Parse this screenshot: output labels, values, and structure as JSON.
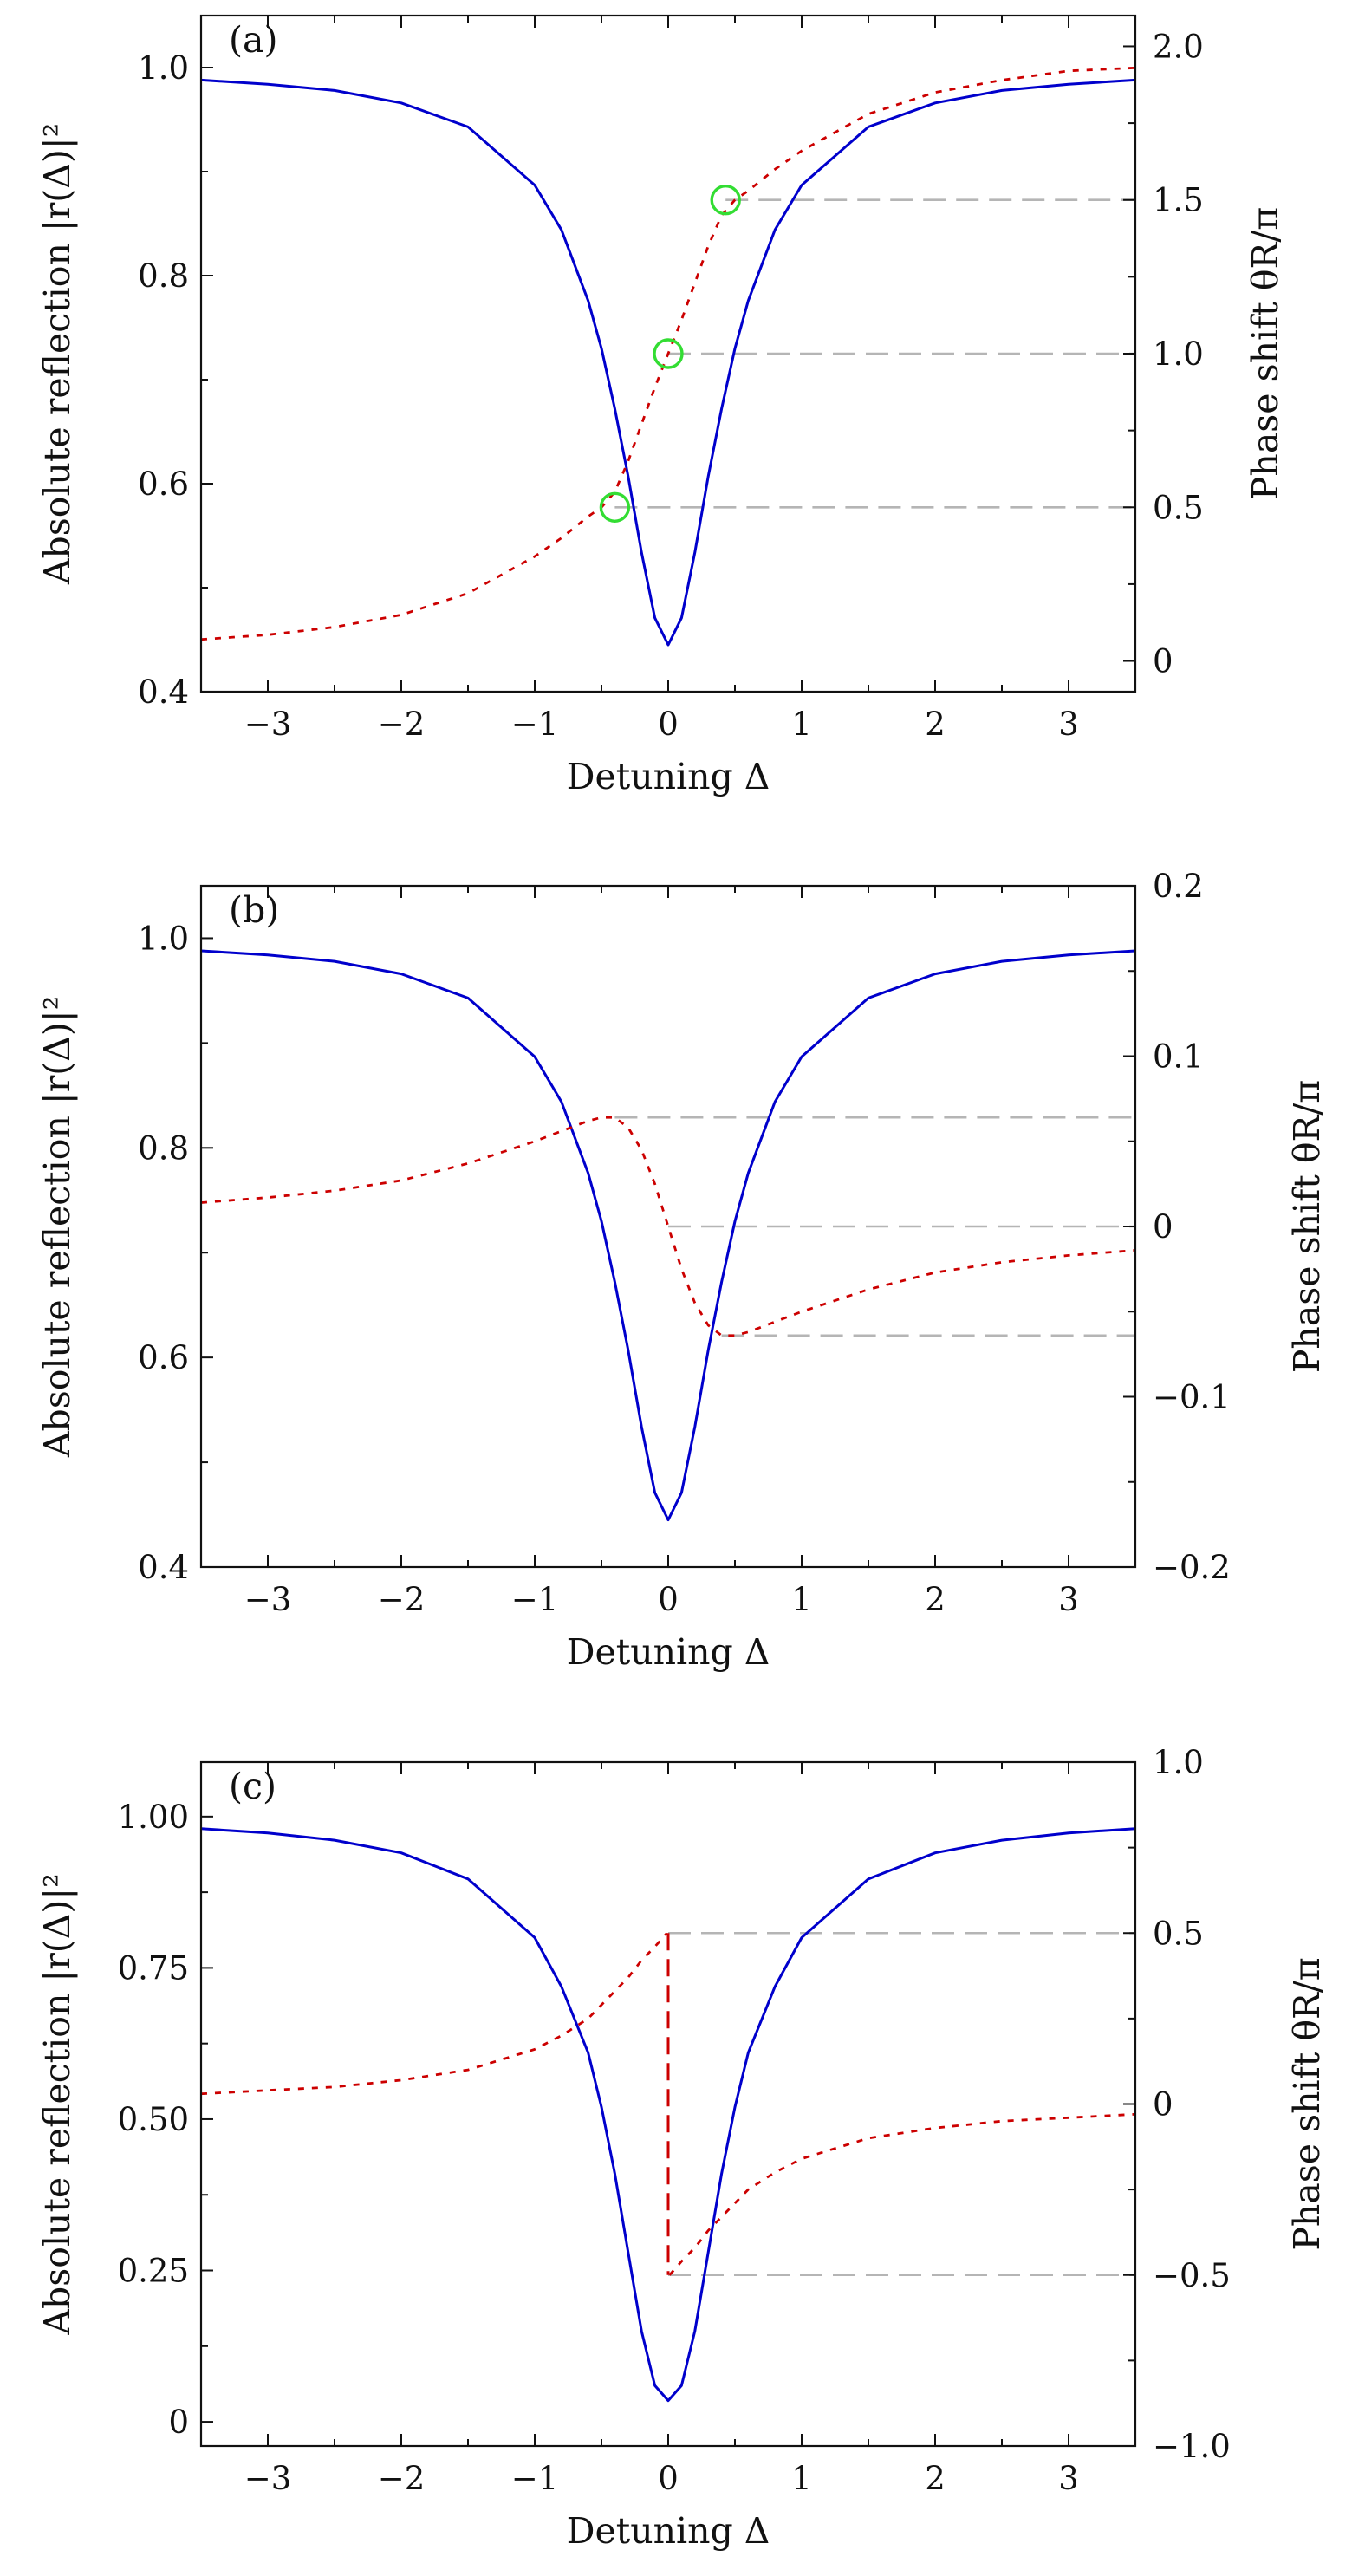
{
  "chart_data": [
    {
      "type": "line",
      "panel_label": "(a)",
      "xlabel": "Detuning Δ",
      "ylabel": "Absolute reflection |r(Δ)|²",
      "y2label": "Phase shift θR/π",
      "xlim": [
        -3.5,
        3.5
      ],
      "ylim": [
        0.4,
        1.05
      ],
      "y2lim": [
        -0.1,
        2.1
      ],
      "xticks": [
        -3,
        -2,
        -1,
        0,
        1,
        2,
        3
      ],
      "xtick_labels": [
        "−3",
        "−2",
        "−1",
        "0",
        "1",
        "2",
        "3"
      ],
      "yticks": [
        0.4,
        0.6,
        0.8,
        1.0
      ],
      "ytick_labels": [
        "0.4",
        "0.6",
        "0.8",
        "1.0"
      ],
      "y2ticks": [
        0,
        0.5,
        1.0,
        1.5,
        2.0
      ],
      "y2tick_labels": [
        "0",
        "0.5",
        "1.0",
        "1.5",
        "2.0"
      ],
      "series": [
        {
          "axis": "left",
          "style": "solid",
          "color": "#0000cc",
          "x": [
            -3.5,
            -3,
            -2.5,
            -2,
            -1.5,
            -1,
            -0.8,
            -0.6,
            -0.5,
            -0.4,
            -0.3,
            -0.2,
            -0.1,
            0,
            0.1,
            0.2,
            0.3,
            0.4,
            0.5,
            0.6,
            0.8,
            1,
            1.5,
            2,
            2.5,
            3,
            3.5
          ],
          "y": [
            0.988,
            0.984,
            0.978,
            0.966,
            0.943,
            0.887,
            0.844,
            0.776,
            0.73,
            0.672,
            0.607,
            0.534,
            0.471,
            0.445,
            0.471,
            0.534,
            0.607,
            0.672,
            0.73,
            0.776,
            0.844,
            0.887,
            0.943,
            0.966,
            0.978,
            0.984,
            0.988
          ]
        },
        {
          "axis": "right",
          "style": "dotted",
          "color": "#cc0000",
          "x": [
            -3.5,
            -3,
            -2.5,
            -2,
            -1.5,
            -1,
            -0.8,
            -0.6,
            -0.5,
            -0.4,
            -0.3,
            -0.2,
            -0.1,
            0,
            0.1,
            0.2,
            0.3,
            0.4,
            0.5,
            0.6,
            0.8,
            1,
            1.5,
            2,
            2.5,
            3,
            3.5
          ],
          "y": [
            0.07,
            0.085,
            0.11,
            0.15,
            0.22,
            0.34,
            0.4,
            0.47,
            0.5,
            0.55,
            0.65,
            0.77,
            0.89,
            1.0,
            1.11,
            1.23,
            1.35,
            1.45,
            1.5,
            1.53,
            1.6,
            1.66,
            1.78,
            1.85,
            1.89,
            1.92,
            1.93
          ]
        }
      ],
      "markers": [
        {
          "x": -0.4,
          "y2": 0.5,
          "color": "#33dd33"
        },
        {
          "x": 0.0,
          "y2": 1.0,
          "color": "#33dd33"
        },
        {
          "x": 0.43,
          "y2": 1.5,
          "color": "#33dd33"
        }
      ],
      "reference_lines": [
        {
          "from_x": -0.4,
          "y2": 0.5
        },
        {
          "from_x": 0.0,
          "y2": 1.0
        },
        {
          "from_x": 0.43,
          "y2": 1.5
        }
      ]
    },
    {
      "type": "line",
      "panel_label": "(b)",
      "xlabel": "Detuning Δ",
      "ylabel": "Absolute reflection |r(Δ)|²",
      "y2label": "Phase shift θR/π",
      "xlim": [
        -3.5,
        3.5
      ],
      "ylim": [
        0.4,
        1.05
      ],
      "y2lim": [
        -0.2,
        0.2
      ],
      "xticks": [
        -3,
        -2,
        -1,
        0,
        1,
        2,
        3
      ],
      "xtick_labels": [
        "−3",
        "−2",
        "−1",
        "0",
        "1",
        "2",
        "3"
      ],
      "yticks": [
        0.4,
        0.6,
        0.8,
        1.0
      ],
      "ytick_labels": [
        "0.4",
        "0.6",
        "0.8",
        "1.0"
      ],
      "y2ticks": [
        -0.2,
        -0.1,
        0,
        0.1,
        0.2
      ],
      "y2tick_labels": [
        "−0.2",
        "−0.1",
        "0",
        "0.1",
        "0.2"
      ],
      "series": [
        {
          "axis": "left",
          "style": "solid",
          "color": "#0000cc",
          "x": [
            -3.5,
            -3,
            -2.5,
            -2,
            -1.5,
            -1,
            -0.8,
            -0.6,
            -0.5,
            -0.4,
            -0.3,
            -0.2,
            -0.1,
            0,
            0.1,
            0.2,
            0.3,
            0.4,
            0.5,
            0.6,
            0.8,
            1,
            1.5,
            2,
            2.5,
            3,
            3.5
          ],
          "y": [
            0.988,
            0.984,
            0.978,
            0.966,
            0.943,
            0.887,
            0.844,
            0.776,
            0.73,
            0.672,
            0.607,
            0.534,
            0.471,
            0.445,
            0.471,
            0.534,
            0.607,
            0.672,
            0.73,
            0.776,
            0.844,
            0.887,
            0.943,
            0.966,
            0.978,
            0.984,
            0.988
          ]
        },
        {
          "axis": "right",
          "style": "dotted",
          "color": "#cc0000",
          "x": [
            -3.5,
            -3,
            -2.5,
            -2,
            -1.5,
            -1,
            -0.8,
            -0.6,
            -0.5,
            -0.4,
            -0.3,
            -0.2,
            -0.1,
            0,
            0.1,
            0.2,
            0.3,
            0.4,
            0.5,
            0.6,
            0.8,
            1,
            1.5,
            2,
            2.5,
            3,
            3.5
          ],
          "y": [
            0.014,
            0.017,
            0.021,
            0.027,
            0.037,
            0.05,
            0.056,
            0.062,
            0.064,
            0.064,
            0.058,
            0.045,
            0.025,
            0,
            -0.025,
            -0.045,
            -0.058,
            -0.064,
            -0.064,
            -0.062,
            -0.056,
            -0.05,
            -0.037,
            -0.027,
            -0.021,
            -0.017,
            -0.014
          ]
        }
      ],
      "markers": [],
      "reference_lines": [
        {
          "from_x": -0.4,
          "y2": 0.064
        },
        {
          "from_x": 0.0,
          "y2": 0.0
        },
        {
          "from_x": 0.4,
          "y2": -0.064
        }
      ]
    },
    {
      "type": "line",
      "panel_label": "(c)",
      "xlabel": "Detuning Δ",
      "ylabel": "Absolute reflection |r(Δ)|²",
      "y2label": "Phase shift θR/π",
      "xlim": [
        -3.5,
        3.5
      ],
      "ylim": [
        -0.04,
        1.09
      ],
      "y2lim": [
        -1.0,
        1.0
      ],
      "xticks": [
        -3,
        -2,
        -1,
        0,
        1,
        2,
        3
      ],
      "xtick_labels": [
        "−3",
        "−2",
        "−1",
        "0",
        "1",
        "2",
        "3"
      ],
      "yticks": [
        0,
        0.25,
        0.5,
        0.75,
        1.0
      ],
      "ytick_labels": [
        "0",
        "0.25",
        "0.50",
        "0.75",
        "1.00"
      ],
      "y2ticks": [
        -1.0,
        -0.5,
        0,
        0.5,
        1.0
      ],
      "y2tick_labels": [
        "−1.0",
        "−0.5",
        "0",
        "0.5",
        "1.0"
      ],
      "series": [
        {
          "axis": "left",
          "style": "solid",
          "color": "#0000cc",
          "x": [
            -3.5,
            -3,
            -2.5,
            -2,
            -1.5,
            -1,
            -0.8,
            -0.6,
            -0.5,
            -0.4,
            -0.3,
            -0.2,
            -0.1,
            0,
            0.1,
            0.2,
            0.3,
            0.4,
            0.5,
            0.6,
            0.8,
            1,
            1.5,
            2,
            2.5,
            3,
            3.5
          ],
          "y": [
            0.98,
            0.973,
            0.961,
            0.94,
            0.897,
            0.8,
            0.719,
            0.61,
            0.52,
            0.41,
            0.28,
            0.15,
            0.06,
            0.035,
            0.06,
            0.15,
            0.28,
            0.41,
            0.52,
            0.61,
            0.719,
            0.8,
            0.897,
            0.94,
            0.961,
            0.973,
            0.98
          ]
        },
        {
          "axis": "right",
          "style": "dotted",
          "color": "#cc0000",
          "x": [
            -3.5,
            -3,
            -2.5,
            -2,
            -1.5,
            -1,
            -0.8,
            -0.6,
            -0.5,
            -0.4,
            -0.3,
            -0.2,
            -0.1,
            -0.01
          ],
          "y": [
            0.03,
            0.04,
            0.05,
            0.07,
            0.1,
            0.16,
            0.2,
            0.25,
            0.29,
            0.33,
            0.37,
            0.42,
            0.46,
            0.5
          ]
        },
        {
          "axis": "right",
          "style": "dotted",
          "color": "#cc0000",
          "x": [
            0.01,
            0.1,
            0.2,
            0.3,
            0.4,
            0.5,
            0.6,
            0.8,
            1,
            1.5,
            2,
            2.5,
            3,
            3.5
          ],
          "y": [
            -0.5,
            -0.46,
            -0.42,
            -0.37,
            -0.33,
            -0.29,
            -0.25,
            -0.2,
            -0.16,
            -0.1,
            -0.07,
            -0.05,
            -0.04,
            -0.03
          ]
        },
        {
          "axis": "right",
          "style": "dashed",
          "color": "#cc0000",
          "x": [
            0,
            0
          ],
          "y": [
            0.5,
            -0.5
          ]
        }
      ],
      "markers": [],
      "reference_lines": [
        {
          "from_x": 0.0,
          "y2": 0.5
        },
        {
          "from_x": 0.0,
          "y2": -0.5
        }
      ]
    }
  ]
}
